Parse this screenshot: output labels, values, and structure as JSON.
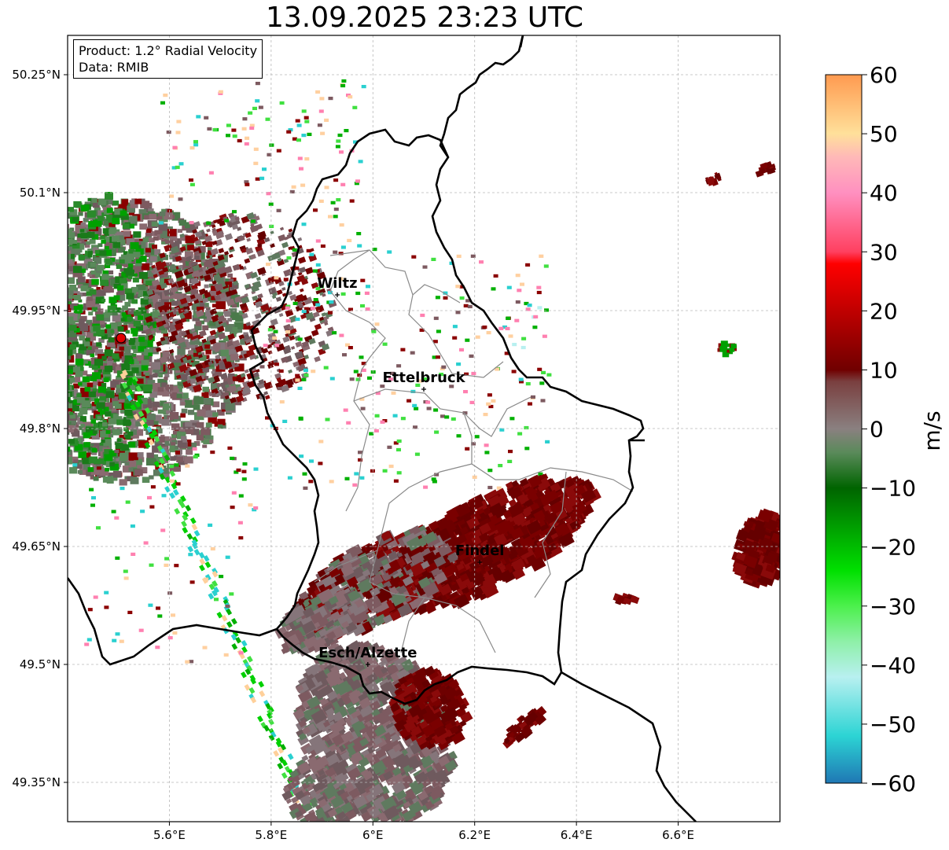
{
  "title": "13.09.2025 23:23 UTC",
  "info": {
    "product": "Product: 1.2° Radial Velocity",
    "data": "Data: RMIB"
  },
  "map": {
    "extent_lon": [
      5.4,
      6.8
    ],
    "extent_lat": [
      49.3,
      50.3
    ],
    "lat_ticks": [
      {
        "value": 50.25,
        "label": "50.25°N"
      },
      {
        "value": 50.1,
        "label": "50.1°N"
      },
      {
        "value": 49.95,
        "label": "49.95°N"
      },
      {
        "value": 49.8,
        "label": "49.8°N"
      },
      {
        "value": 49.65,
        "label": "49.65°N"
      },
      {
        "value": 49.5,
        "label": "49.5°N"
      },
      {
        "value": 49.35,
        "label": "49.35°N"
      }
    ],
    "lon_ticks": [
      {
        "value": 5.6,
        "label": "5.6°E"
      },
      {
        "value": 5.8,
        "label": "5.8°E"
      },
      {
        "value": 6.0,
        "label": "6°E"
      },
      {
        "value": 6.2,
        "label": "6.2°E"
      },
      {
        "value": 6.4,
        "label": "6.4°E"
      },
      {
        "value": 6.6,
        "label": "6.6°E"
      }
    ],
    "cities": [
      {
        "name": "Wiltz",
        "lon": 5.93,
        "lat": 49.97
      },
      {
        "name": "Ettelbruck",
        "lon": 6.1,
        "lat": 49.85
      },
      {
        "name": "Findel",
        "lon": 6.21,
        "lat": 49.63
      },
      {
        "name": "Esch/Alzette",
        "lon": 5.99,
        "lat": 49.5
      }
    ],
    "radar_site": {
      "lon": 5.505,
      "lat": 49.915
    }
  },
  "colorbar": {
    "label": "m/s",
    "vmin": -60,
    "vmax": 60,
    "ticks": [
      {
        "value": 60,
        "label": "60"
      },
      {
        "value": 50,
        "label": "50"
      },
      {
        "value": 40,
        "label": "40"
      },
      {
        "value": 30,
        "label": "30"
      },
      {
        "value": 20,
        "label": "20"
      },
      {
        "value": 10,
        "label": "10"
      },
      {
        "value": 0,
        "label": "0"
      },
      {
        "value": -10,
        "label": "−10"
      },
      {
        "value": -20,
        "label": "−20"
      },
      {
        "value": -30,
        "label": "−30"
      },
      {
        "value": -40,
        "label": "−40"
      },
      {
        "value": -50,
        "label": "−50"
      },
      {
        "value": -60,
        "label": "−60"
      }
    ],
    "color_stops": [
      {
        "value": -60,
        "color": "#1f77b4"
      },
      {
        "value": -52,
        "color": "#2cd4d4"
      },
      {
        "value": -42,
        "color": "#b8f0f0"
      },
      {
        "value": -36,
        "color": "#8ef0a8"
      },
      {
        "value": -30,
        "color": "#4cf04c"
      },
      {
        "value": -24,
        "color": "#00e000"
      },
      {
        "value": -10,
        "color": "#006400"
      },
      {
        "value": -4,
        "color": "#5a8a5a"
      },
      {
        "value": 0,
        "color": "#8a8080"
      },
      {
        "value": 8,
        "color": "#7a4040"
      },
      {
        "value": 10,
        "color": "#700000"
      },
      {
        "value": 28,
        "color": "#ff0000"
      },
      {
        "value": 30,
        "color": "#ff4060"
      },
      {
        "value": 40,
        "color": "#ff90c0"
      },
      {
        "value": 46,
        "color": "#ffb8b8"
      },
      {
        "value": 50,
        "color": "#ffe09a"
      },
      {
        "value": 60,
        "color": "#ff9a50"
      }
    ]
  },
  "colors": {
    "inbound_strong": "#6e0000",
    "zero": "#7d5a60",
    "outbound": "#00b000",
    "radar_marker": "#e00000"
  }
}
